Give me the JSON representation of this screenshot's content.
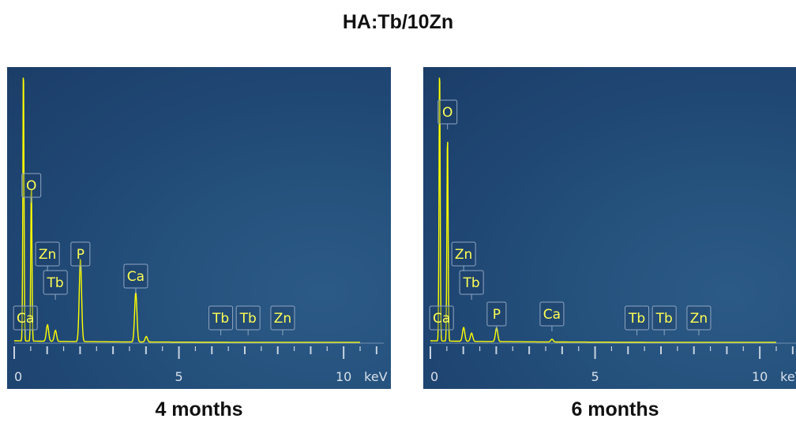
{
  "title": "HA:Tb/10Zn",
  "chart_data": [
    {
      "type": "line",
      "caption": "4 months",
      "xlim": [
        0,
        10.5
      ],
      "x_unit": "keV",
      "x_ticks": [
        0,
        5,
        10
      ],
      "line_color": "#ffff00",
      "label_color": "#ffff55",
      "background": "#1f4572",
      "peaks": [
        {
          "element": "C",
          "x": 0.28,
          "y": 100
        },
        {
          "element": "O",
          "x": 0.52,
          "y": 57
        },
        {
          "element": "Zn",
          "x": 1.01,
          "y": 6
        },
        {
          "element": "Tb",
          "x": 1.25,
          "y": 4
        },
        {
          "element": "P",
          "x": 2.01,
          "y": 30
        },
        {
          "element": "Ca",
          "x": 3.69,
          "y": 18
        },
        {
          "element": "Ca",
          "x": 4.01,
          "y": 2
        }
      ],
      "labels": [
        {
          "text": "O",
          "x": 0.52
        },
        {
          "text": "Zn",
          "x": 1.01
        },
        {
          "text": "Tb",
          "x": 1.25
        },
        {
          "text": "P",
          "x": 2.01
        },
        {
          "text": "Ca",
          "x": 3.69
        },
        {
          "text": "Ca",
          "x": 0.34
        },
        {
          "text": "Tb",
          "x": 6.27
        },
        {
          "text": "Tb",
          "x": 7.1
        },
        {
          "text": "Zn",
          "x": 8.15
        }
      ]
    },
    {
      "type": "line",
      "caption": "6 months",
      "xlim": [
        0,
        10.5
      ],
      "x_unit": "keV",
      "x_ticks": [
        0,
        5,
        10
      ],
      "line_color": "#ffff00",
      "label_color": "#ffff55",
      "background": "#1f4572",
      "peaks": [
        {
          "element": "C",
          "x": 0.28,
          "y": 100
        },
        {
          "element": "O",
          "x": 0.52,
          "y": 75
        },
        {
          "element": "Zn",
          "x": 1.01,
          "y": 5
        },
        {
          "element": "Tb",
          "x": 1.25,
          "y": 3
        },
        {
          "element": "P",
          "x": 2.01,
          "y": 5
        },
        {
          "element": "Ca",
          "x": 3.69,
          "y": 1
        }
      ],
      "labels": [
        {
          "text": "O",
          "x": 0.52
        },
        {
          "text": "Zn",
          "x": 1.01
        },
        {
          "text": "Tb",
          "x": 1.25
        },
        {
          "text": "P",
          "x": 2.01
        },
        {
          "text": "Ca",
          "x": 3.69
        },
        {
          "text": "Ca",
          "x": 0.34
        },
        {
          "text": "Tb",
          "x": 6.27
        },
        {
          "text": "Tb",
          "x": 7.1
        },
        {
          "text": "Zn",
          "x": 8.15
        }
      ]
    }
  ]
}
